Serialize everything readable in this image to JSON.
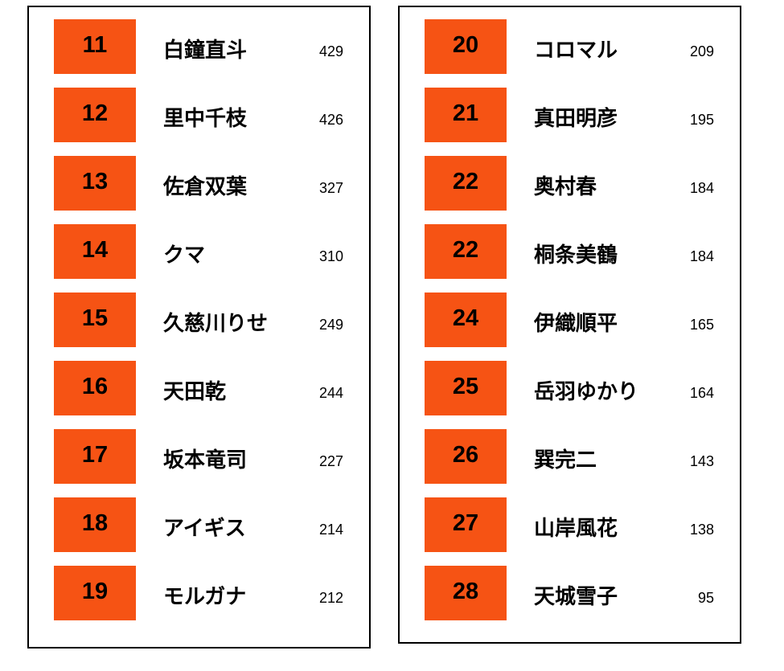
{
  "accent_color": "#f65314",
  "columns": [
    {
      "rows": [
        {
          "rank": "11",
          "name": "白鐘直斗",
          "score": "429"
        },
        {
          "rank": "12",
          "name": "里中千枝",
          "score": "426"
        },
        {
          "rank": "13",
          "name": "佐倉双葉",
          "score": "327"
        },
        {
          "rank": "14",
          "name": "クマ",
          "score": "310"
        },
        {
          "rank": "15",
          "name": "久慈川りせ",
          "score": "249"
        },
        {
          "rank": "16",
          "name": "天田乾",
          "score": "244"
        },
        {
          "rank": "17",
          "name": "坂本竜司",
          "score": "227"
        },
        {
          "rank": "18",
          "name": "アイギス",
          "score": "214"
        },
        {
          "rank": "19",
          "name": "モルガナ",
          "score": "212"
        }
      ]
    },
    {
      "rows": [
        {
          "rank": "20",
          "name": "コロマル",
          "score": "209"
        },
        {
          "rank": "21",
          "name": "真田明彦",
          "score": "195"
        },
        {
          "rank": "22",
          "name": "奥村春",
          "score": "184"
        },
        {
          "rank": "22",
          "name": "桐条美鶴",
          "score": "184"
        },
        {
          "rank": "24",
          "name": "伊織順平",
          "score": "165"
        },
        {
          "rank": "25",
          "name": "岳羽ゆかり",
          "score": "164"
        },
        {
          "rank": "26",
          "name": "巽完二",
          "score": "143"
        },
        {
          "rank": "27",
          "name": "山岸風花",
          "score": "138"
        },
        {
          "rank": "28",
          "name": "天城雪子",
          "score": "95"
        }
      ]
    }
  ]
}
